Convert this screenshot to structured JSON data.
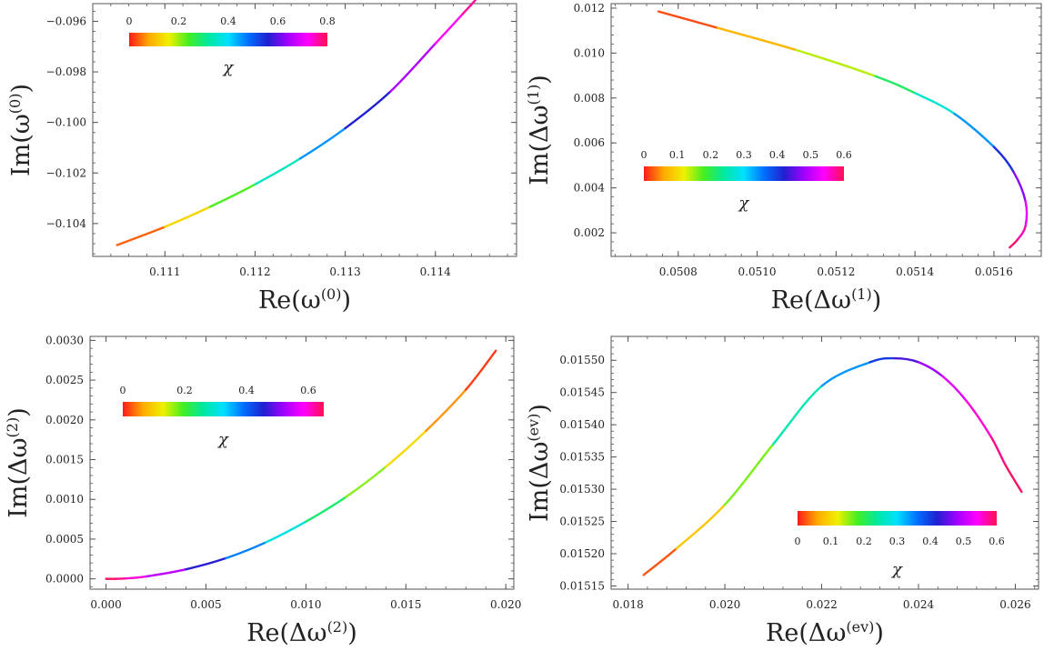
{
  "figure": {
    "description_colors": {
      "curve_path": "#d8143a",
      "colorbar_stops": [
        "#ff1a1a",
        "#ffaa00",
        "#f0f000",
        "#44ee22",
        "#00e8a0",
        "#00e0ff",
        "#0070ff",
        "#2020d0",
        "#a000ff",
        "#ff00ff",
        "#ff1050"
      ],
      "axis": "#555555"
    }
  },
  "chart_data": [
    {
      "type": "line",
      "id": "panel-1",
      "xlabel": "Re(ω(0))",
      "ylabel": "Im(ω(0))",
      "xlabel_main": "Re(ω",
      "xlabel_sup": "(0)",
      "ylabel_main": "Im(ω",
      "ylabel_sup": "(0)",
      "xlim": [
        0.1102,
        0.1149
      ],
      "ylim": [
        -0.1053,
        -0.0953
      ],
      "xticks": [
        0.111,
        0.112,
        0.113,
        0.114
      ],
      "xtick_labels": [
        "0.111",
        "0.112",
        "0.113",
        "0.114"
      ],
      "yticks": [
        -0.104,
        -0.102,
        -0.1,
        -0.098,
        -0.096
      ],
      "ytick_labels": [
        "−0.104",
        "−0.102",
        "−0.100",
        "−0.098",
        "−0.096"
      ],
      "x": [
        0.11047,
        0.111,
        0.1115,
        0.112,
        0.1125,
        0.113,
        0.1135,
        0.114,
        0.1143,
        0.1145,
        0.11469
      ],
      "y": [
        -0.10485,
        -0.10413,
        -0.10334,
        -0.10245,
        -0.10143,
        -0.10023,
        -0.09878,
        -0.09688,
        -0.09572,
        -0.0949,
        -0.09372
      ],
      "chi": [
        0.0,
        0.08,
        0.18,
        0.29,
        0.4,
        0.51,
        0.61,
        0.7,
        0.75,
        0.78,
        0.8
      ],
      "colorbar": {
        "ticks": [
          0,
          0.2,
          0.4,
          0.6,
          0.8
        ],
        "tick_labels": [
          "0",
          "0.2",
          "0.4",
          "0.6",
          "0.8"
        ],
        "range": [
          0,
          0.8
        ],
        "label": "χ",
        "position": "upper-left"
      }
    },
    {
      "type": "line",
      "id": "panel-2",
      "xlabel": "Re(Δω(1))",
      "ylabel": "Im(Δω(1))",
      "xlabel_main": "Re(Δω",
      "xlabel_sup": "(1)",
      "ylabel_main": "Im(Δω",
      "ylabel_sup": "(1)",
      "xlim": [
        0.05063,
        0.05172
      ],
      "ylim": [
        0.00095,
        0.0122
      ],
      "xticks": [
        0.0508,
        0.051,
        0.0512,
        0.0514,
        0.0516
      ],
      "xtick_labels": [
        "0.0508",
        "0.0510",
        "0.0512",
        "0.0514",
        "0.0516"
      ],
      "yticks": [
        0.002,
        0.004,
        0.006,
        0.008,
        0.01,
        0.012
      ],
      "ytick_labels": [
        "0.002",
        "0.004",
        "0.006",
        "0.008",
        "0.010",
        "0.012"
      ],
      "x": [
        0.05075,
        0.0509,
        0.0511,
        0.0513,
        0.0514,
        0.0515,
        0.0516,
        0.05165,
        0.05168,
        0.05168,
        0.05166,
        0.05164
      ],
      "y": [
        0.01185,
        0.01112,
        0.01013,
        0.00897,
        0.00822,
        0.0073,
        0.00582,
        0.0047,
        0.0034,
        0.0023,
        0.0017,
        0.00135
      ],
      "chi": [
        0.0,
        0.04,
        0.1,
        0.18,
        0.24,
        0.3,
        0.38,
        0.44,
        0.5,
        0.55,
        0.58,
        0.6
      ],
      "colorbar": {
        "ticks": [
          0,
          0.1,
          0.2,
          0.3,
          0.4,
          0.5,
          0.6
        ],
        "tick_labels": [
          "0",
          "0.1",
          "0.2",
          "0.3",
          "0.4",
          "0.5",
          "0.6"
        ],
        "range": [
          0,
          0.6
        ],
        "label": "χ",
        "position": "middle-left"
      }
    },
    {
      "type": "line",
      "id": "panel-3",
      "xlabel": "Re(Δω(2))",
      "ylabel": "Im(Δω(2))",
      "xlabel_main": "Re(Δω",
      "xlabel_sup": "(2)",
      "ylabel_main": "Im(Δω",
      "ylabel_sup": "(2)",
      "xlim": [
        -0.0008,
        0.0204
      ],
      "ylim": [
        -0.00013,
        0.00305
      ],
      "xticks": [
        0.0,
        0.005,
        0.01,
        0.015,
        0.02
      ],
      "xtick_labels": [
        "0.000",
        "0.005",
        "0.010",
        "0.015",
        "0.020"
      ],
      "yticks": [
        0.0,
        0.0005,
        0.001,
        0.0015,
        0.002,
        0.0025,
        0.003
      ],
      "ytick_labels": [
        "0.0000",
        "0.0005",
        "0.0010",
        "0.0015",
        "0.0020",
        "0.0025",
        "0.0030"
      ],
      "x": [
        0.0,
        0.0005,
        0.001,
        0.002,
        0.004,
        0.006,
        0.008,
        0.01,
        0.012,
        0.014,
        0.016,
        0.018,
        0.0195
      ],
      "y": [
        0.0,
        0.0,
        5e-06,
        3e-05,
        0.00012,
        0.00026,
        0.00046,
        0.00072,
        0.00103,
        0.00141,
        0.00186,
        0.00238,
        0.00287
      ],
      "chi": [
        0.65,
        0.64,
        0.62,
        0.58,
        0.5,
        0.42,
        0.34,
        0.27,
        0.2,
        0.14,
        0.08,
        0.03,
        0.0
      ],
      "colorbar": {
        "ticks": [
          0,
          0.2,
          0.4,
          0.6
        ],
        "tick_labels": [
          "0",
          "0.2",
          "0.4",
          "0.6"
        ],
        "range": [
          0,
          0.65
        ],
        "label": "χ",
        "position": "upper-left"
      }
    },
    {
      "type": "line",
      "id": "panel-4",
      "xlabel": "Re(Δω(ev))",
      "ylabel": "Im(Δω(ev))",
      "xlabel_main": "Re(Δω",
      "xlabel_sup": "(ev)",
      "ylabel_main": "Im(Δω",
      "ylabel_sup": "(ev)",
      "xlim": [
        0.01765,
        0.02648
      ],
      "ylim": [
        0.015145,
        0.015537
      ],
      "xticks": [
        0.018,
        0.02,
        0.022,
        0.024,
        0.026
      ],
      "xtick_labels": [
        "0.018",
        "0.020",
        "0.022",
        "0.024",
        "0.026"
      ],
      "yticks": [
        0.01515,
        0.0152,
        0.01525,
        0.0153,
        0.01535,
        0.0154,
        0.01545,
        0.0155
      ],
      "ytick_labels": [
        "0.01515",
        "0.01520",
        "0.01525",
        "0.01530",
        "0.01535",
        "0.01540",
        "0.01545",
        "0.01550"
      ],
      "x": [
        0.01832,
        0.019,
        0.02,
        0.021,
        0.022,
        0.023,
        0.0235,
        0.024,
        0.0245,
        0.025,
        0.0255,
        0.0258,
        0.02613
      ],
      "y": [
        0.015167,
        0.015208,
        0.015276,
        0.01537,
        0.01546,
        0.015497,
        0.015503,
        0.015497,
        0.015475,
        0.015436,
        0.015381,
        0.015337,
        0.015296
      ],
      "chi": [
        0.0,
        0.05,
        0.12,
        0.2,
        0.3,
        0.38,
        0.42,
        0.46,
        0.5,
        0.54,
        0.57,
        0.59,
        0.6
      ],
      "colorbar": {
        "ticks": [
          0,
          0.1,
          0.2,
          0.3,
          0.4,
          0.5,
          0.6
        ],
        "tick_labels": [
          "0",
          "0.1",
          "0.2",
          "0.3",
          "0.4",
          "0.5",
          "0.6"
        ],
        "range": [
          0,
          0.6
        ],
        "label": "χ",
        "position": "lower-right"
      }
    }
  ]
}
